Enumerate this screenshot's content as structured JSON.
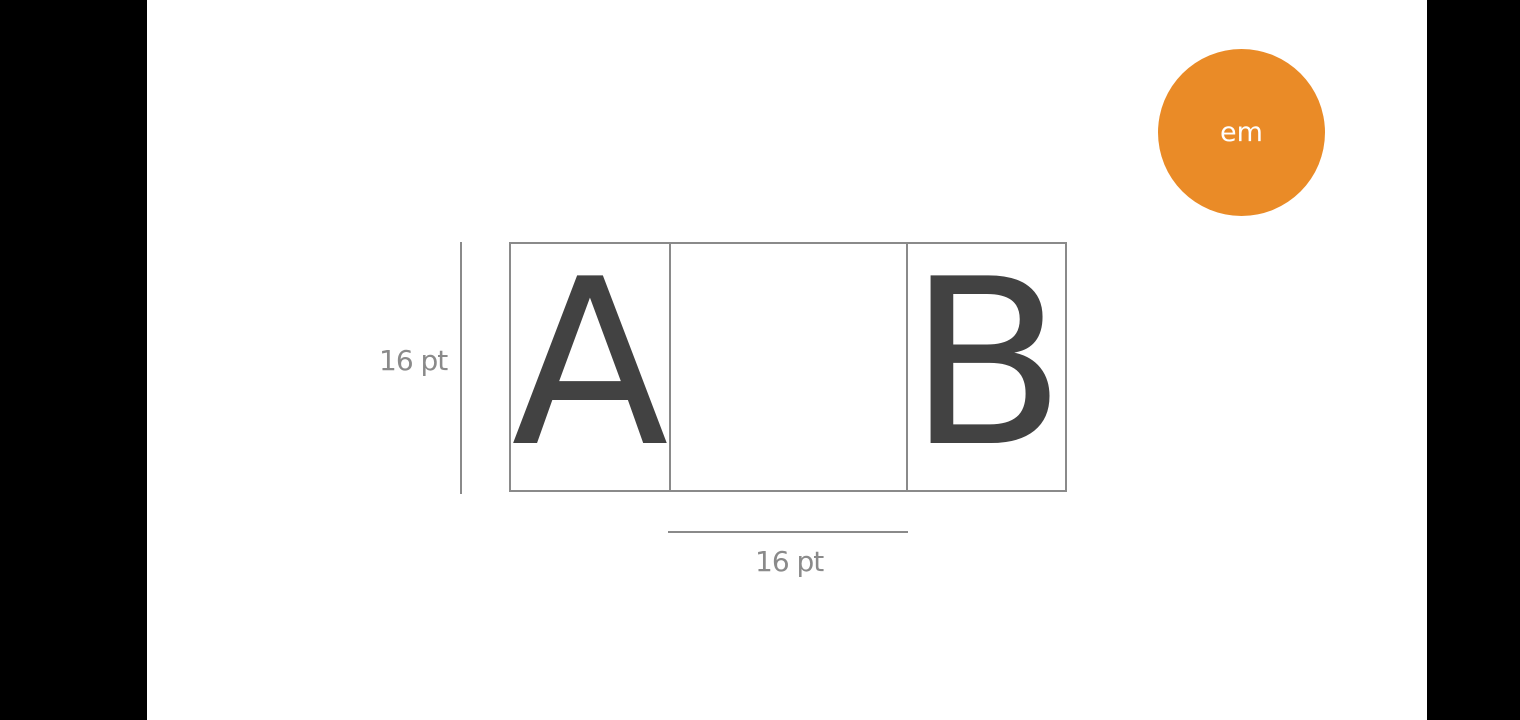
{
  "badge": {
    "text": "em",
    "color": "#ea8b27"
  },
  "diagram": {
    "glyph_left": "A",
    "glyph_right": "B",
    "height_label": "16 pt",
    "width_label": "16 pt",
    "line_color": "#8a8a8a",
    "glyph_color": "#424242"
  }
}
